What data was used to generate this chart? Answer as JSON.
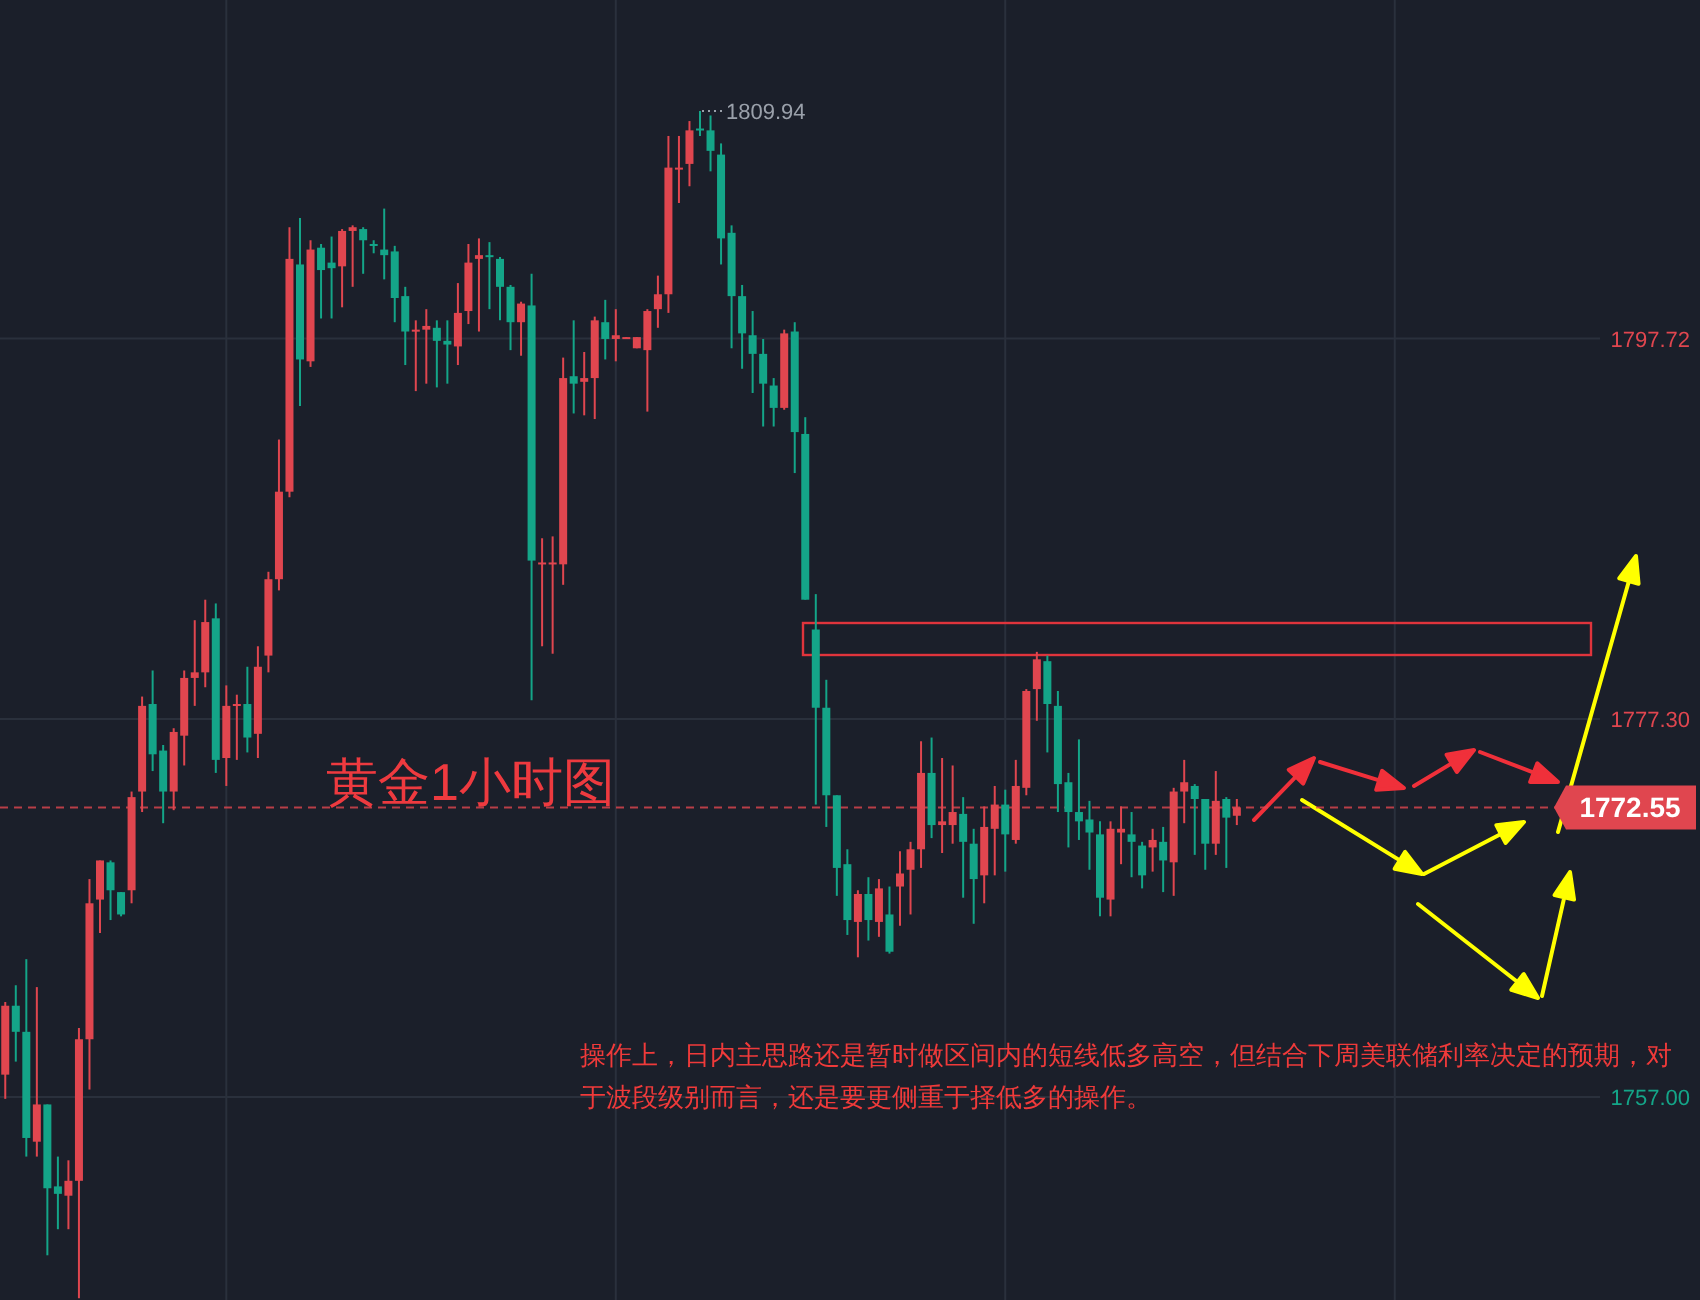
{
  "chart_data": {
    "type": "candlestick",
    "title": "黄金1小时图",
    "categories": [
      null,
      null,
      null,
      null,
      null,
      null,
      null,
      null,
      null,
      null,
      null,
      null,
      null,
      null,
      null,
      null,
      null,
      null,
      null,
      null,
      null,
      null,
      null,
      null,
      null,
      null,
      null,
      null,
      null,
      null,
      null,
      null,
      null,
      null,
      null,
      null,
      null,
      null,
      null,
      null,
      null,
      null,
      null,
      null,
      null,
      null,
      null,
      null,
      null,
      null,
      null,
      null,
      null,
      null,
      null,
      null,
      null,
      null,
      null,
      null,
      null,
      null,
      null,
      null,
      null,
      null,
      null,
      null,
      null,
      null,
      null,
      null,
      null,
      null,
      null,
      null,
      null,
      null,
      null,
      null,
      null,
      null,
      null,
      null,
      null,
      null,
      null,
      null,
      null,
      null,
      null,
      null,
      null,
      null,
      null,
      null,
      null,
      null,
      null,
      null,
      null,
      null,
      null,
      null,
      null,
      null,
      null,
      null,
      null,
      null,
      null,
      null,
      null,
      null,
      null,
      null,
      null,
      null,
      null,
      null,
      null,
      null,
      null,
      null,
      null,
      null,
      null,
      null,
      null,
      null,
      null,
      null,
      null,
      null,
      null,
      null,
      null,
      null,
      null,
      null,
      null,
      null,
      null,
      null,
      null,
      null,
      null,
      null,
      null,
      null,
      null,
      null
    ],
    "ohlc": [
      [
        1758.2,
        1762.1,
        1756.9,
        1761.9
      ],
      [
        1761.9,
        1763.0,
        1758.9,
        1760.5
      ],
      [
        1760.5,
        1764.4,
        1753.8,
        1754.8
      ],
      [
        1754.6,
        1762.9,
        1753.8,
        1756.6
      ],
      [
        1756.6,
        1756.6,
        1748.5,
        1752.1
      ],
      [
        1752.2,
        1753.8,
        1749.9,
        1751.8
      ],
      [
        1751.7,
        1753.6,
        1749.9,
        1752.5
      ],
      [
        1752.5,
        1760.7,
        1746.2,
        1760.1
      ],
      [
        1760.1,
        1768.7,
        1757.4,
        1767.4
      ],
      [
        1767.6,
        1769.7,
        1765.8,
        1769.7
      ],
      [
        1769.6,
        1769.7,
        1766.5,
        1768.1
      ],
      [
        1768.0,
        1768.0,
        1766.7,
        1766.8
      ],
      [
        1768.1,
        1773.4,
        1767.4,
        1773.1
      ],
      [
        1773.4,
        1778.5,
        1772.3,
        1778.0
      ],
      [
        1778.1,
        1779.9,
        1774.5,
        1775.4
      ],
      [
        1775.6,
        1775.9,
        1771.7,
        1773.4
      ],
      [
        1773.4,
        1776.8,
        1772.4,
        1776.6
      ],
      [
        1776.4,
        1779.9,
        1774.8,
        1779.5
      ],
      [
        1779.5,
        1782.6,
        1778.0,
        1779.8
      ],
      [
        1779.8,
        1783.7,
        1779.0,
        1782.5
      ],
      [
        1782.7,
        1783.5,
        1774.4,
        1775.1
      ],
      [
        1775.2,
        1779.1,
        1773.7,
        1778.0
      ],
      [
        1778.0,
        1778.6,
        1775.1,
        1778.1
      ],
      [
        1778.1,
        1780.1,
        1775.5,
        1776.3
      ],
      [
        1776.5,
        1781.2,
        1775.2,
        1780.1
      ],
      [
        1780.7,
        1785.2,
        1779.8,
        1784.8
      ],
      [
        1784.8,
        1792.3,
        1784.2,
        1789.5
      ],
      [
        1789.5,
        1803.7,
        1789.2,
        1802.0
      ],
      [
        1801.7,
        1804.2,
        1794.1,
        1796.6
      ],
      [
        1796.5,
        1803.0,
        1796.2,
        1802.5
      ],
      [
        1802.6,
        1802.8,
        1798.8,
        1801.4
      ],
      [
        1801.8,
        1803.2,
        1798.8,
        1801.5
      ],
      [
        1801.6,
        1803.6,
        1799.4,
        1803.5
      ],
      [
        1803.5,
        1803.8,
        1800.5,
        1803.7
      ],
      [
        1803.6,
        1803.7,
        1801.2,
        1803.0
      ],
      [
        1802.8,
        1803.0,
        1802.3,
        1802.7
      ],
      [
        1802.5,
        1804.7,
        1800.9,
        1802.2
      ],
      [
        1802.4,
        1802.7,
        1798.6,
        1799.9
      ],
      [
        1800.0,
        1800.5,
        1796.3,
        1798.1
      ],
      [
        1798.1,
        1798.7,
        1794.9,
        1798.2
      ],
      [
        1798.2,
        1799.3,
        1795.3,
        1798.4
      ],
      [
        1798.3,
        1798.7,
        1795.1,
        1797.6
      ],
      [
        1797.6,
        1798.7,
        1795.3,
        1797.4
      ],
      [
        1797.3,
        1800.7,
        1796.3,
        1799.1
      ],
      [
        1799.2,
        1802.8,
        1798.5,
        1801.8
      ],
      [
        1802.0,
        1803.1,
        1798.1,
        1802.2
      ],
      [
        1802.2,
        1802.9,
        1799.3,
        1802.1
      ],
      [
        1802.0,
        1802.1,
        1798.7,
        1800.5
      ],
      [
        1800.5,
        1800.6,
        1797.1,
        1798.6
      ],
      [
        1798.6,
        1799.7,
        1796.8,
        1799.6
      ],
      [
        1799.5,
        1801.2,
        1778.3,
        1785.8
      ],
      [
        1785.6,
        1787.0,
        1781.2,
        1785.7
      ],
      [
        1785.6,
        1787.1,
        1780.8,
        1785.7
      ],
      [
        1785.6,
        1796.7,
        1784.5,
        1795.6
      ],
      [
        1795.7,
        1798.7,
        1793.7,
        1795.3
      ],
      [
        1795.4,
        1797.0,
        1793.6,
        1795.6
      ],
      [
        1795.6,
        1798.9,
        1793.4,
        1798.7
      ],
      [
        1798.6,
        1799.8,
        1796.6,
        1797.7
      ],
      [
        1797.7,
        1799.3,
        1796.5,
        1797.9
      ],
      [
        1797.7,
        1797.8,
        1797.7,
        1797.8
      ],
      [
        1797.2,
        1797.8,
        1797.2,
        1797.8
      ],
      [
        1797.1,
        1799.3,
        1793.8,
        1799.2
      ],
      [
        1799.3,
        1801.1,
        1798.3,
        1800.1
      ],
      [
        1800.1,
        1808.6,
        1799.1,
        1806.9
      ],
      [
        1806.8,
        1808.6,
        1805.0,
        1806.9
      ],
      [
        1807.1,
        1809.4,
        1805.9,
        1808.9
      ],
      [
        1809.0,
        1809.94,
        1808.6,
        1808.9
      ],
      [
        1808.9,
        1809.7,
        1806.7,
        1807.8
      ],
      [
        1807.6,
        1808.2,
        1801.7,
        1803.1
      ],
      [
        1803.4,
        1803.8,
        1797.2,
        1800.0
      ],
      [
        1800.0,
        1800.6,
        1796.1,
        1798.0
      ],
      [
        1797.9,
        1799.2,
        1794.8,
        1796.9
      ],
      [
        1796.9,
        1797.7,
        1793.0,
        1795.3
      ],
      [
        1795.2,
        1795.6,
        1793.0,
        1794.0
      ],
      [
        1794.0,
        1798.2,
        1793.9,
        1798.0
      ],
      [
        1798.1,
        1798.6,
        1790.5,
        1792.7
      ],
      [
        1792.6,
        1793.5,
        1783.7,
        1783.7
      ],
      [
        1782.1,
        1784.0,
        1772.7,
        1777.9
      ],
      [
        1777.9,
        1779.4,
        1771.5,
        1773.2
      ],
      [
        1773.2,
        1773.2,
        1767.8,
        1769.3
      ],
      [
        1769.5,
        1770.3,
        1765.7,
        1766.5
      ],
      [
        1766.4,
        1768.1,
        1764.5,
        1767.9
      ],
      [
        1767.9,
        1768.8,
        1765.4,
        1766.5
      ],
      [
        1766.4,
        1768.7,
        1765.6,
        1768.2
      ],
      [
        1766.8,
        1768.3,
        1764.7,
        1764.8
      ],
      [
        1768.3,
        1770.2,
        1766.2,
        1769.0
      ],
      [
        1769.2,
        1770.7,
        1766.8,
        1770.3
      ],
      [
        1770.3,
        1776.1,
        1769.3,
        1774.4
      ],
      [
        1774.4,
        1776.3,
        1770.9,
        1771.6
      ],
      [
        1771.6,
        1775.2,
        1770.1,
        1771.8
      ],
      [
        1771.6,
        1774.8,
        1770.6,
        1772.3
      ],
      [
        1772.2,
        1773.1,
        1767.7,
        1770.7
      ],
      [
        1770.6,
        1771.4,
        1766.3,
        1768.7
      ],
      [
        1768.9,
        1772.6,
        1767.4,
        1771.5
      ],
      [
        1771.4,
        1773.7,
        1768.9,
        1772.7
      ],
      [
        1772.7,
        1773.5,
        1769.1,
        1771.1
      ],
      [
        1770.8,
        1775.1,
        1770.6,
        1773.7
      ],
      [
        1773.6,
        1778.9,
        1773.2,
        1778.8
      ],
      [
        1778.9,
        1780.9,
        1777.2,
        1780.5
      ],
      [
        1780.4,
        1780.7,
        1775.5,
        1778.1
      ],
      [
        1778.0,
        1778.8,
        1772.3,
        1773.8
      ],
      [
        1773.9,
        1774.4,
        1770.4,
        1772.3
      ],
      [
        1772.3,
        1776.2,
        1770.8,
        1771.8
      ],
      [
        1771.9,
        1772.9,
        1769.2,
        1771.2
      ],
      [
        1771.1,
        1771.8,
        1766.7,
        1767.7
      ],
      [
        1767.6,
        1771.8,
        1766.7,
        1771.4
      ],
      [
        1771.2,
        1772.6,
        1769.5,
        1771.4
      ],
      [
        1771.1,
        1772.3,
        1768.8,
        1770.7
      ],
      [
        1770.5,
        1770.7,
        1768.2,
        1768.9
      ],
      [
        1770.4,
        1771.4,
        1769.1,
        1770.8
      ],
      [
        1770.7,
        1771.5,
        1768.0,
        1769.7
      ],
      [
        1769.6,
        1773.6,
        1767.8,
        1773.4
      ],
      [
        1773.4,
        1775.1,
        1771.7,
        1773.9
      ],
      [
        1773.7,
        1773.8,
        1770.0,
        1773.0
      ],
      [
        1773.0,
        1773.0,
        1769.2,
        1770.6
      ],
      [
        1770.6,
        1774.5,
        1770.0,
        1772.9
      ],
      [
        1773.0,
        1773.1,
        1769.3,
        1772.0
      ],
      [
        1772.1,
        1773.0,
        1771.6,
        1772.55
      ],
      null,
      null,
      null,
      null,
      null,
      null,
      null,
      null,
      null,
      null,
      null,
      null,
      null,
      null,
      null,
      null,
      null,
      null,
      null,
      null,
      null,
      null,
      null,
      null,
      null,
      null,
      null,
      null,
      null,
      null,
      null,
      null,
      null,
      null
    ],
    "ylim": [
      1746.1,
      1815.9
    ],
    "yticks": [
      1797.72,
      {
        "value": 1777.3,
        "label": "1777.30"
      },
      {
        "value": 1757.0,
        "label": "1757.00"
      }
    ],
    "grid": true,
    "ref_lines": [
      {
        "axis": "y",
        "value": 1772.55,
        "label": "1772.55",
        "color": "#e0464f",
        "line_style": "dashed"
      }
    ],
    "annotations": [
      "1809.94",
      "操作上，日内主思路还是暂时做区间内的短线低多高空，但结合下周美联储利率决定的预期，对于波段级别而言，还是要更侧重于择低多的操作。"
    ]
  }
}
